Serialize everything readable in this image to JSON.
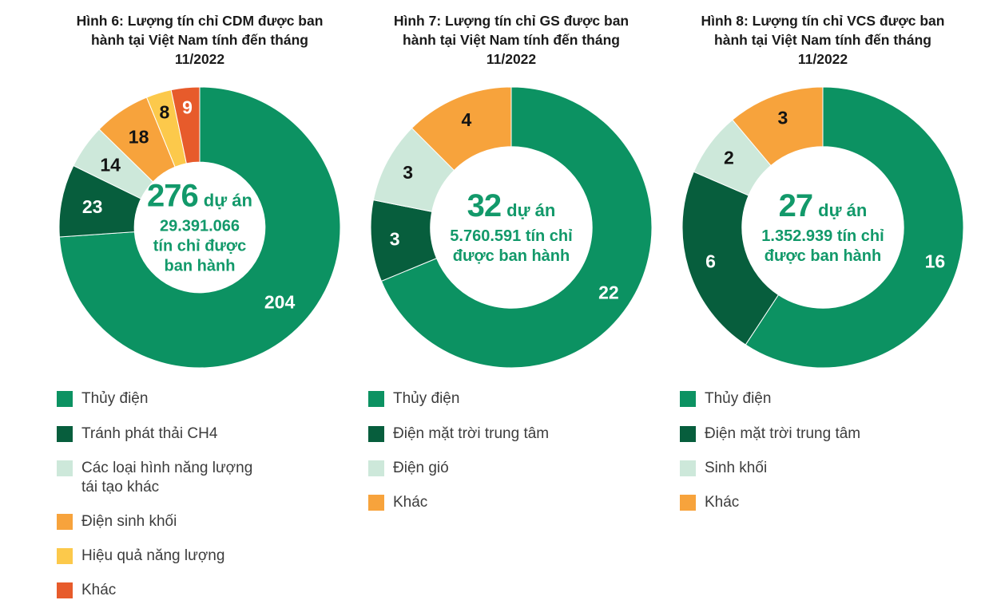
{
  "palette": {
    "green": "#0C9262",
    "dark_green": "#075E3D",
    "mint": "#CDE8DA",
    "orange": "#F7A33C",
    "yellow": "#FCC94B",
    "red_orange": "#E75B2B",
    "center_text": "#12996A",
    "title_text": "#1B1B1B",
    "legend_text": "#3D3D3D",
    "background": "#FFFFFF"
  },
  "chart_data": [
    {
      "type": "pie",
      "subtype": "donut",
      "title": "Hình 6: Lượng tín chỉ CDM được ban hành tại Việt Nam tính đến tháng 11/2022",
      "total": 276,
      "start_angle_deg": 0,
      "direction": "clockwise",
      "inner_ratio": 0.465,
      "legend_position": "bottom-left",
      "center": {
        "number": "276",
        "number_suffix": "dự án",
        "lines": [
          "29.391.066",
          "tín chỉ được",
          "ban hành"
        ]
      },
      "slices": [
        {
          "label": "Thủy điện",
          "value": 204,
          "color": "#0C9262",
          "value_label_color": "#FFFFFF"
        },
        {
          "label": "Tránh phát thải CH4",
          "value": 23,
          "color": "#075E3D",
          "value_label_color": "#FFFFFF"
        },
        {
          "label": "Các loại hình năng lượng tái tạo khác",
          "value": 14,
          "color": "#CDE8DA",
          "value_label_color": "#141414"
        },
        {
          "label": "Điện sinh khối",
          "value": 18,
          "color": "#F7A33C",
          "value_label_color": "#141414"
        },
        {
          "label": "Hiệu quả năng lượng",
          "value": 8,
          "color": "#FCC94B",
          "value_label_color": "#141414"
        },
        {
          "label": "Khác",
          "value": 9,
          "color": "#E75B2B",
          "value_label_color": "#FFFFFF"
        }
      ]
    },
    {
      "type": "pie",
      "subtype": "donut",
      "title": "Hình 7: Lượng tín chỉ GS được ban hành tại Việt Nam tính đến tháng 11/2022",
      "total": 32,
      "start_angle_deg": 0,
      "direction": "clockwise",
      "inner_ratio": 0.575,
      "legend_position": "bottom-left",
      "center": {
        "number": "32",
        "number_suffix": "dự án",
        "lines": [
          "5.760.591 tín chỉ",
          "được ban hành"
        ]
      },
      "slices": [
        {
          "label": "Thủy điện",
          "value": 22,
          "color": "#0C9262",
          "value_label_color": "#FFFFFF"
        },
        {
          "label": "Điện mặt trời trung tâm",
          "value": 3,
          "color": "#075E3D",
          "value_label_color": "#FFFFFF"
        },
        {
          "label": "Điện gió",
          "value": 3,
          "color": "#CDE8DA",
          "value_label_color": "#141414"
        },
        {
          "label": "Khác",
          "value": 4,
          "color": "#F7A33C",
          "value_label_color": "#141414"
        }
      ]
    },
    {
      "type": "pie",
      "subtype": "donut",
      "title": "Hình 8: Lượng tín chỉ VCS được ban hành tại Việt Nam tính đến tháng 11/2022",
      "total": 27,
      "start_angle_deg": 0,
      "direction": "clockwise",
      "inner_ratio": 0.575,
      "legend_position": "bottom-left",
      "center": {
        "number": "27",
        "number_suffix": "dự án",
        "lines": [
          "1.352.939 tín chỉ",
          "được ban hành"
        ]
      },
      "slices": [
        {
          "label": "Thủy điện",
          "value": 16,
          "color": "#0C9262",
          "value_label_color": "#FFFFFF"
        },
        {
          "label": "Điện mặt trời trung tâm",
          "value": 6,
          "color": "#075E3D",
          "value_label_color": "#FFFFFF"
        },
        {
          "label": "Sinh khối",
          "value": 2,
          "color": "#CDE8DA",
          "value_label_color": "#141414"
        },
        {
          "label": "Khác",
          "value": 3,
          "color": "#F7A33C",
          "value_label_color": "#141414"
        }
      ]
    }
  ]
}
